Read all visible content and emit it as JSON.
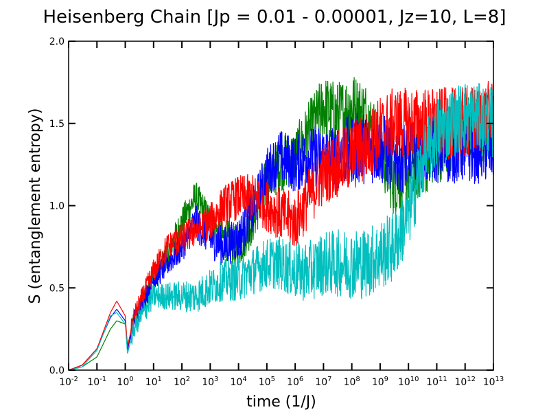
{
  "chart_data": {
    "type": "line",
    "title": "Heisenberg Chain [Jp = 0.01 - 0.00001, Jz=10, L=8]",
    "xlabel": "time (1/J)",
    "ylabel": "S (entanglement entropy)",
    "xscale": "log",
    "xlim": [
      0.01,
      10000000000000.0
    ],
    "ylim": [
      0.0,
      2.0
    ],
    "grid": false,
    "legend": "none",
    "x_ticks": [
      {
        "base": "10",
        "exp": "-2"
      },
      {
        "base": "10",
        "exp": "-1"
      },
      {
        "base": "10",
        "exp": "0"
      },
      {
        "base": "10",
        "exp": "1"
      },
      {
        "base": "10",
        "exp": "2"
      },
      {
        "base": "10",
        "exp": "3"
      },
      {
        "base": "10",
        "exp": "4"
      },
      {
        "base": "10",
        "exp": "5"
      },
      {
        "base": "10",
        "exp": "6"
      },
      {
        "base": "10",
        "exp": "7"
      },
      {
        "base": "10",
        "exp": "8"
      },
      {
        "base": "10",
        "exp": "9"
      },
      {
        "base": "10",
        "exp": "10"
      },
      {
        "base": "10",
        "exp": "11"
      },
      {
        "base": "10",
        "exp": "12"
      },
      {
        "base": "10",
        "exp": "13"
      }
    ],
    "y_ticks": [
      "0.0",
      "0.5",
      "1.0",
      "1.5",
      "2.0"
    ],
    "series": [
      {
        "color": "#008000",
        "x": [
          0.01,
          0.03,
          0.1,
          0.3,
          0.5,
          1,
          1.2,
          2,
          10,
          30,
          100,
          300,
          1000,
          3000,
          10000,
          30000,
          100000,
          300000,
          1000000,
          3000000,
          10000000,
          30000000,
          100000000,
          300000000,
          1000000000,
          3000000000,
          10000000000,
          100000000000,
          1000000000000,
          10000000000000
        ],
        "y": [
          0.0,
          0.02,
          0.08,
          0.25,
          0.3,
          0.28,
          0.15,
          0.3,
          0.55,
          0.7,
          0.9,
          1.05,
          0.9,
          0.8,
          0.75,
          0.9,
          1.15,
          1.25,
          1.3,
          1.45,
          1.6,
          1.55,
          1.6,
          1.55,
          1.35,
          1.15,
          1.2,
          1.35,
          1.45,
          1.5
        ]
      },
      {
        "color": "#0000ff",
        "x": [
          0.01,
          0.03,
          0.1,
          0.3,
          0.5,
          1,
          1.2,
          2,
          10,
          30,
          100,
          300,
          1000,
          3000,
          10000,
          30000,
          100000,
          300000,
          1000000,
          3000000,
          10000000,
          30000000,
          100000000,
          300000000,
          1000000000,
          3000000000,
          10000000000,
          100000000000,
          1000000000000,
          10000000000000
        ],
        "y": [
          0.0,
          0.03,
          0.13,
          0.32,
          0.37,
          0.3,
          0.12,
          0.3,
          0.55,
          0.65,
          0.75,
          0.9,
          0.8,
          0.75,
          0.8,
          0.95,
          1.2,
          1.3,
          1.25,
          1.3,
          1.3,
          1.3,
          1.35,
          1.35,
          1.35,
          1.3,
          1.3,
          1.35,
          1.35,
          1.35
        ]
      },
      {
        "color": "#ff0000",
        "x": [
          0.01,
          0.03,
          0.1,
          0.3,
          0.5,
          1,
          1.2,
          2,
          10,
          30,
          100,
          300,
          1000,
          3000,
          10000,
          30000,
          100000,
          300000,
          1000000,
          3000000,
          10000000,
          30000000,
          100000000,
          300000000,
          1000000000,
          3000000000,
          10000000000,
          100000000000,
          1000000000000,
          10000000000000
        ],
        "y": [
          0.0,
          0.03,
          0.13,
          0.35,
          0.42,
          0.33,
          0.14,
          0.32,
          0.6,
          0.75,
          0.8,
          0.85,
          0.9,
          1.0,
          1.05,
          1.05,
          1.0,
          0.95,
          0.9,
          1.05,
          1.2,
          1.25,
          1.3,
          1.35,
          1.45,
          1.5,
          1.5,
          1.5,
          1.5,
          1.55
        ]
      },
      {
        "color": "#00bfbf",
        "x": [
          0.01,
          0.03,
          0.1,
          0.3,
          0.5,
          1,
          1.2,
          2,
          10,
          30,
          100,
          300,
          1000,
          3000,
          10000,
          30000,
          100000,
          300000,
          1000000,
          3000000,
          10000000,
          30000000,
          100000000,
          300000000,
          1000000000,
          3000000000,
          10000000000,
          30000000000,
          100000000000,
          1000000000000,
          10000000000000
        ],
        "y": [
          0.0,
          0.02,
          0.12,
          0.33,
          0.35,
          0.28,
          0.1,
          0.25,
          0.45,
          0.45,
          0.45,
          0.45,
          0.5,
          0.55,
          0.55,
          0.6,
          0.65,
          0.65,
          0.6,
          0.6,
          0.65,
          0.65,
          0.65,
          0.65,
          0.7,
          0.75,
          0.95,
          1.25,
          1.45,
          1.55,
          1.5
        ]
      }
    ]
  }
}
